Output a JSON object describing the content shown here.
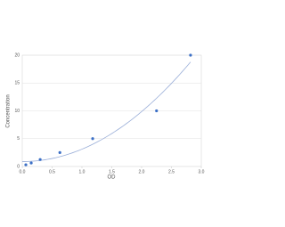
{
  "chart_data": {
    "type": "scatter",
    "x_label": "OD",
    "y_label": "Concentration",
    "x": [
      0.06,
      0.15,
      0.3,
      0.63,
      1.18,
      2.25,
      2.82
    ],
    "values": [
      0.31,
      0.63,
      1.25,
      2.5,
      5,
      10,
      20
    ],
    "color": "#3b6fc6",
    "trend_color": "#9aaed8",
    "xlim": [
      0,
      3
    ],
    "xticks": [
      {
        "value": 0,
        "label": "0.0"
      },
      0.5,
      {
        "value": 1,
        "label": "1.0"
      },
      1.5,
      {
        "value": 2,
        "label": "2.0"
      },
      2.5,
      {
        "value": 3,
        "label": "3.0"
      }
    ],
    "ylim": [
      0,
      20
    ],
    "yticks": [
      0,
      5,
      10,
      15,
      20
    ],
    "grid": true
  }
}
